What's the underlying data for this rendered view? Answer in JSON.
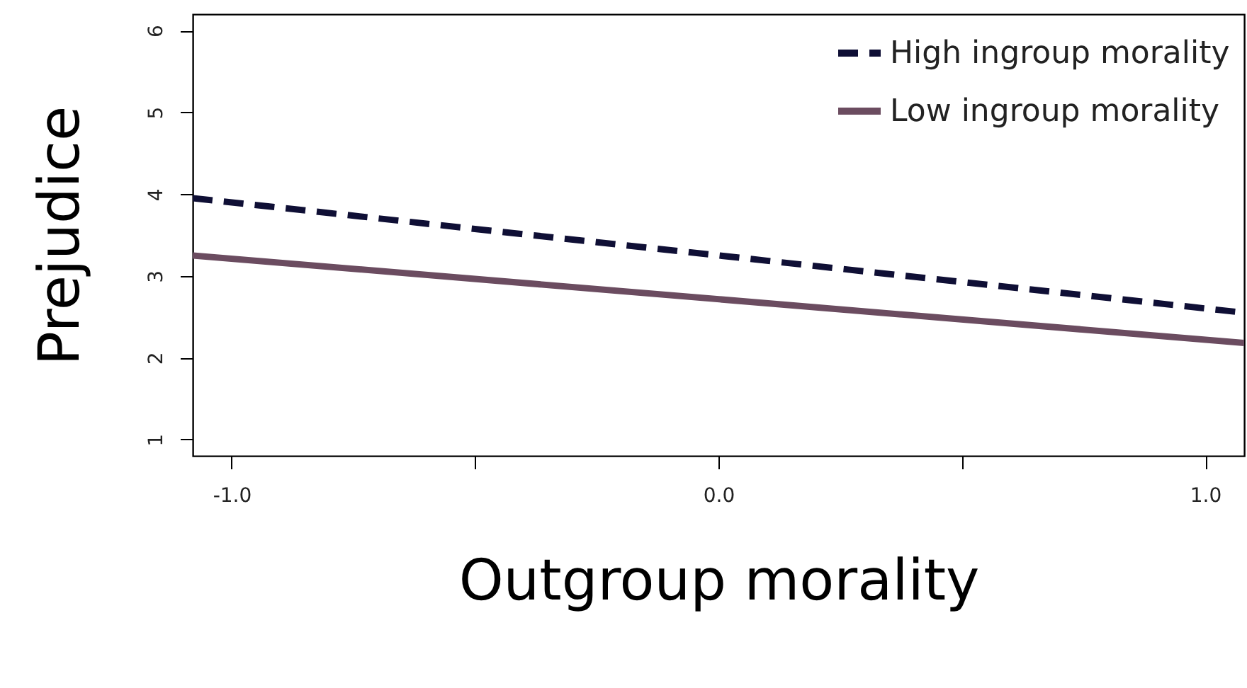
{
  "chart_data": {
    "type": "line",
    "xlabel": "Outgroup morality",
    "ylabel": "Prejudice",
    "x": [
      -1.08,
      1.08
    ],
    "series": [
      {
        "name": "High ingroup morality",
        "color": "#0f0f35",
        "line_style": "dashed",
        "values": [
          3.95,
          2.55
        ]
      },
      {
        "name": "Low ingroup morality",
        "color": "#6b4c60",
        "line_style": "solid",
        "values": [
          3.25,
          2.18
        ]
      }
    ],
    "xlim": [
      -1.08,
      1.08
    ],
    "ylim": [
      0.8,
      6.2
    ],
    "xticks": [
      {
        "value": -1.0,
        "label": "-1.0"
      },
      {
        "value": -0.5,
        "label": null
      },
      {
        "value": 0.0,
        "label": "0.0"
      },
      {
        "value": 0.5,
        "label": null
      },
      {
        "value": 1.0,
        "label": "1.0"
      }
    ],
    "yticks": [
      1,
      2,
      3,
      4,
      5,
      6
    ],
    "legend": "top right",
    "grid": false
  }
}
